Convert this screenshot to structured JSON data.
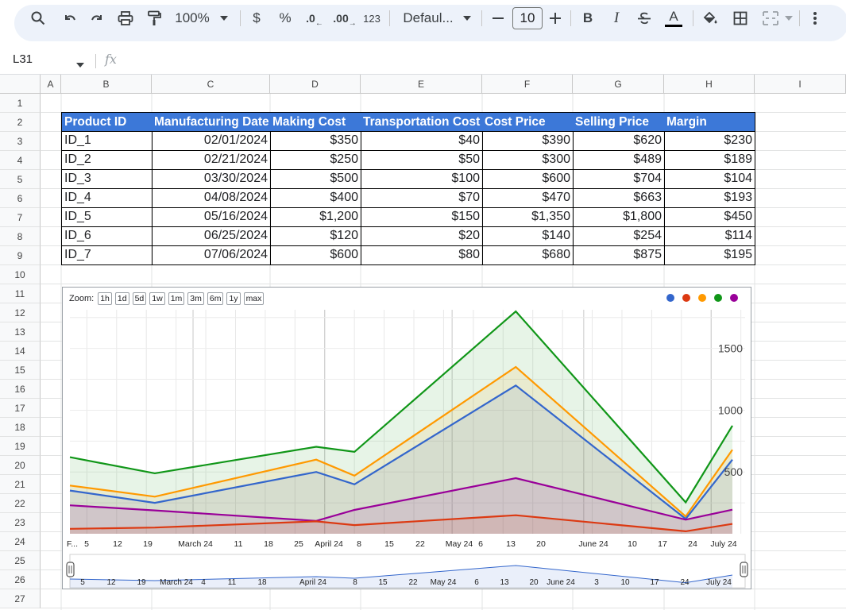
{
  "toolbar": {
    "zoom": "100%",
    "currency": "$",
    "percent": "%",
    "dec_decrease": ".0",
    "dec_increase": ".00",
    "number_format": "123",
    "font": "Defaul...",
    "font_size": "10",
    "bold": "B",
    "italic": "I",
    "text_color": "A"
  },
  "formula_bar": {
    "cell_ref": "L31",
    "fx": "fx"
  },
  "columns": [
    "A",
    "B",
    "C",
    "D",
    "E",
    "F",
    "G",
    "H",
    "I"
  ],
  "rows": [
    "1",
    "2",
    "3",
    "4",
    "5",
    "6",
    "7",
    "8",
    "9",
    "10",
    "11",
    "12",
    "13",
    "14",
    "15",
    "16",
    "17",
    "18",
    "19",
    "20",
    "21",
    "22",
    "23",
    "24",
    "25",
    "26",
    "27"
  ],
  "table": {
    "headers": [
      "Product ID",
      "Manufacturing Date",
      "Making Cost",
      "Transportation Cost",
      "Cost Price",
      "Selling Price",
      "Margin"
    ],
    "rows": [
      [
        "ID_1",
        "02/01/2024",
        "$350",
        "$40",
        "$390",
        "$620",
        "$230"
      ],
      [
        "ID_2",
        "02/21/2024",
        "$250",
        "$50",
        "$300",
        "$489",
        "$189"
      ],
      [
        "ID_3",
        "03/30/2024",
        "$500",
        "$100",
        "$600",
        "$704",
        "$104"
      ],
      [
        "ID_4",
        "04/08/2024",
        "$400",
        "$70",
        "$470",
        "$663",
        "$193"
      ],
      [
        "ID_5",
        "05/16/2024",
        "$1,200",
        "$150",
        "$1,350",
        "$1,800",
        "$450"
      ],
      [
        "ID_6",
        "06/25/2024",
        "$120",
        "$20",
        "$140",
        "$254",
        "$114"
      ],
      [
        "ID_7",
        "07/06/2024",
        "$600",
        "$80",
        "$680",
        "$875",
        "$195"
      ]
    ]
  },
  "chart": {
    "zoom_label": "Zoom:",
    "zoom_buttons": [
      "1h",
      "1d",
      "5d",
      "1w",
      "1m",
      "3m",
      "6m",
      "1y",
      "max"
    ],
    "legend_colors": [
      "#3366cc",
      "#dc3912",
      "#ff9900",
      "#109618",
      "#990099"
    ],
    "y_ticks": [
      "1500",
      "1000",
      "500"
    ],
    "x_ticks": [
      "F...",
      "5",
      "12",
      "19",
      "March 24",
      "11",
      "18",
      "25",
      "April 24",
      "8",
      "15",
      "22",
      "May 24",
      "6",
      "13",
      "20",
      "June 24",
      "10",
      "17",
      "24",
      "July 24"
    ],
    "nav_ticks": [
      "5",
      "12",
      "19",
      "March 24",
      "4",
      "11",
      "18",
      "April 24",
      "8",
      "15",
      "22",
      "May 24",
      "6",
      "13",
      "20",
      "June 24",
      "3",
      "10",
      "17",
      "24",
      "July 24"
    ]
  },
  "chart_data": {
    "type": "area",
    "title": "",
    "x": [
      "2024-02-01",
      "2024-02-21",
      "2024-03-30",
      "2024-04-08",
      "2024-05-16",
      "2024-06-25",
      "2024-07-06"
    ],
    "series": [
      {
        "color": "#3366cc",
        "values": [
          350,
          250,
          500,
          400,
          1200,
          120,
          600
        ]
      },
      {
        "color": "#dc3912",
        "values": [
          40,
          50,
          100,
          70,
          150,
          20,
          80
        ]
      },
      {
        "color": "#ff9900",
        "values": [
          390,
          300,
          600,
          470,
          1350,
          140,
          680
        ]
      },
      {
        "color": "#109618",
        "values": [
          620,
          489,
          704,
          663,
          1800,
          254,
          875
        ]
      },
      {
        "color": "#990099",
        "values": [
          230,
          189,
          104,
          193,
          450,
          114,
          195
        ]
      }
    ],
    "ylim": [
      0,
      1800
    ],
    "grid": true
  }
}
